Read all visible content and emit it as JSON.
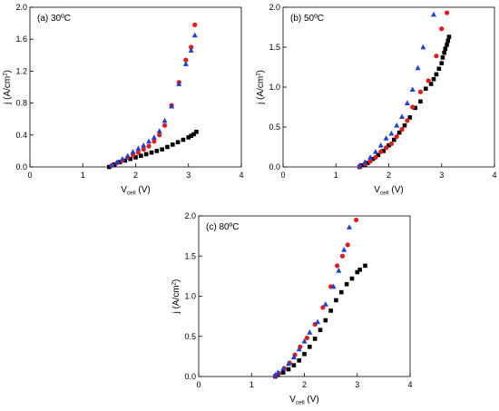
{
  "chart_data": [
    {
      "type": "scatter",
      "panel_label": "(a) 30ºC",
      "xlabel": {
        "main": "V",
        "sub": "cell",
        "unit": " (V)"
      },
      "ylabel": {
        "main": "j (A/cm",
        "sup": "2",
        "end": ")"
      },
      "xlim": [
        0,
        4
      ],
      "ylim": [
        0,
        2.0
      ],
      "xticks": [
        "0",
        "1",
        "2",
        "3",
        "4"
      ],
      "yticks": [
        "0.0",
        "0.4",
        "0.8",
        "1.2",
        "1.6",
        "2.0"
      ],
      "xtick_values": [
        0,
        1,
        2,
        3,
        4
      ],
      "ytick_values": [
        0.0,
        0.4,
        0.8,
        1.2,
        1.6,
        2.0
      ],
      "series": [
        {
          "marker": "square",
          "color": "#000000",
          "x": [
            1.5,
            1.6,
            1.7,
            1.8,
            1.9,
            2.0,
            2.1,
            2.2,
            2.3,
            2.4,
            2.5,
            2.6,
            2.7,
            2.8,
            2.9,
            3.0,
            3.05,
            3.1,
            3.15
          ],
          "y": [
            0.0,
            0.03,
            0.06,
            0.08,
            0.1,
            0.12,
            0.14,
            0.16,
            0.18,
            0.2,
            0.22,
            0.25,
            0.28,
            0.31,
            0.34,
            0.37,
            0.39,
            0.41,
            0.44
          ]
        },
        {
          "marker": "circle",
          "color": "#e31a1c",
          "x": [
            1.55,
            1.65,
            1.75,
            1.85,
            1.95,
            2.05,
            2.15,
            2.25,
            2.35,
            2.45,
            2.55,
            2.68,
            2.82,
            2.95,
            3.05,
            3.12
          ],
          "y": [
            0.02,
            0.05,
            0.08,
            0.12,
            0.15,
            0.18,
            0.22,
            0.26,
            0.32,
            0.4,
            0.52,
            0.77,
            1.06,
            1.34,
            1.5,
            1.78
          ]
        },
        {
          "marker": "triangle",
          "color": "#1f3fd6",
          "x": [
            1.55,
            1.65,
            1.75,
            1.85,
            1.95,
            2.05,
            2.15,
            2.25,
            2.35,
            2.45,
            2.55,
            2.68,
            2.82,
            2.95,
            3.05,
            3.12
          ],
          "y": [
            0.02,
            0.06,
            0.1,
            0.14,
            0.19,
            0.23,
            0.27,
            0.32,
            0.37,
            0.45,
            0.58,
            0.76,
            1.04,
            1.29,
            1.46,
            1.65
          ]
        }
      ]
    },
    {
      "type": "scatter",
      "panel_label": "(b) 50ºC",
      "xlabel": {
        "main": "V",
        "sub": "cell",
        "unit": " (V)"
      },
      "ylabel": {
        "main": "j (A/cm",
        "sup": "2",
        "end": ")"
      },
      "xlim": [
        0,
        4
      ],
      "ylim": [
        0,
        2.0
      ],
      "xticks": [
        "0",
        "1",
        "2",
        "3",
        "4"
      ],
      "yticks": [
        "0.0",
        "0.5",
        "1.0",
        "1.5",
        "2.0"
      ],
      "xtick_values": [
        0,
        1,
        2,
        3,
        4
      ],
      "ytick_values": [
        0.0,
        0.5,
        1.0,
        1.5,
        2.0
      ],
      "series": [
        {
          "marker": "square",
          "color": "#000000",
          "x": [
            1.45,
            1.5,
            1.55,
            1.6,
            1.7,
            1.8,
            1.9,
            2.0,
            2.1,
            2.2,
            2.3,
            2.4,
            2.5,
            2.6,
            2.7,
            2.8,
            2.85,
            2.9,
            2.95,
            3.0,
            3.02,
            3.05,
            3.07,
            3.1,
            3.12,
            3.14
          ],
          "y": [
            0.0,
            0.02,
            0.03,
            0.05,
            0.1,
            0.15,
            0.2,
            0.27,
            0.34,
            0.43,
            0.52,
            0.62,
            0.74,
            0.82,
            0.98,
            1.04,
            1.1,
            1.16,
            1.23,
            1.3,
            1.37,
            1.43,
            1.48,
            1.53,
            1.58,
            1.63
          ]
        },
        {
          "marker": "circle",
          "color": "#e31a1c",
          "x": [
            1.45,
            1.55,
            1.65,
            1.75,
            1.85,
            1.95,
            2.05,
            2.15,
            2.25,
            2.35,
            2.45,
            2.6,
            2.75,
            2.9,
            3.0,
            3.1
          ],
          "y": [
            0.01,
            0.04,
            0.07,
            0.12,
            0.19,
            0.24,
            0.29,
            0.38,
            0.47,
            0.58,
            0.75,
            0.94,
            1.08,
            1.39,
            1.73,
            1.93
          ]
        },
        {
          "marker": "triangle",
          "color": "#1f3fd6",
          "x": [
            1.45,
            1.55,
            1.65,
            1.75,
            1.85,
            1.95,
            2.05,
            2.15,
            2.25,
            2.35,
            2.45,
            2.55,
            2.65,
            2.85
          ],
          "y": [
            0.02,
            0.06,
            0.12,
            0.19,
            0.27,
            0.36,
            0.42,
            0.52,
            0.63,
            0.8,
            0.97,
            1.24,
            1.5,
            1.91
          ]
        }
      ]
    },
    {
      "type": "scatter",
      "panel_label": "(c) 80ºC",
      "xlabel": {
        "main": "V",
        "sub": "cell",
        "unit": " (V)"
      },
      "ylabel": {
        "main": "j (A/cm",
        "sup": "2",
        "end": ")"
      },
      "xlim": [
        0,
        4
      ],
      "ylim": [
        0,
        2.0
      ],
      "xticks": [
        "0",
        "1",
        "2",
        "3",
        "4"
      ],
      "yticks": [
        "0.0",
        "0.5",
        "1.0",
        "1.5",
        "2.0"
      ],
      "xtick_values": [
        0,
        1,
        2,
        3,
        4
      ],
      "ytick_values": [
        0.0,
        0.5,
        1.0,
        1.5,
        2.0
      ],
      "series": [
        {
          "marker": "square",
          "color": "#000000",
          "x": [
            1.45,
            1.5,
            1.6,
            1.7,
            1.8,
            1.9,
            2.0,
            2.1,
            2.2,
            2.3,
            2.4,
            2.5,
            2.6,
            2.7,
            2.8,
            2.9,
            3.0,
            3.05,
            3.15
          ],
          "y": [
            0.0,
            0.02,
            0.05,
            0.09,
            0.14,
            0.2,
            0.28,
            0.37,
            0.47,
            0.58,
            0.7,
            0.82,
            0.95,
            1.05,
            1.15,
            1.22,
            1.3,
            1.33,
            1.38
          ]
        },
        {
          "marker": "circle",
          "color": "#e31a1c",
          "x": [
            1.45,
            1.52,
            1.62,
            1.72,
            1.82,
            1.92,
            2.05,
            2.2,
            2.35,
            2.5,
            2.62,
            2.72,
            2.82,
            2.98
          ],
          "y": [
            0.01,
            0.04,
            0.1,
            0.17,
            0.27,
            0.37,
            0.48,
            0.65,
            0.86,
            1.12,
            1.38,
            1.5,
            1.64,
            1.95
          ]
        },
        {
          "marker": "triangle",
          "color": "#1f3fd6",
          "x": [
            1.45,
            1.5,
            1.6,
            1.7,
            1.8,
            1.9,
            2.0,
            2.1,
            2.25,
            2.4,
            2.55,
            2.65,
            2.75,
            2.85
          ],
          "y": [
            0.02,
            0.05,
            0.1,
            0.16,
            0.24,
            0.34,
            0.44,
            0.55,
            0.68,
            0.9,
            1.12,
            1.32,
            1.58,
            1.86
          ]
        }
      ]
    }
  ]
}
